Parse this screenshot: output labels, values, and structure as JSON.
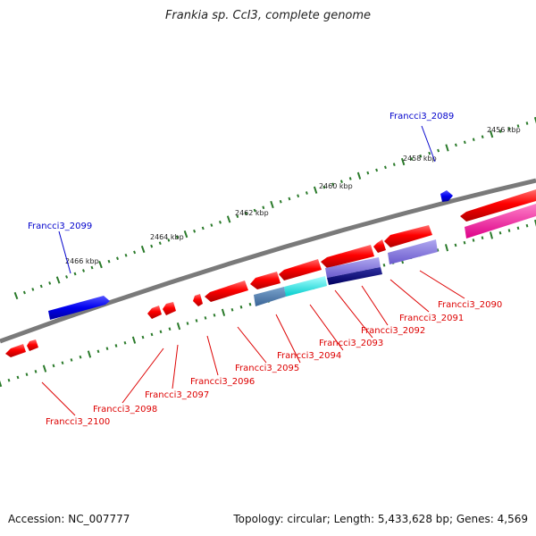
{
  "title": "Frankia sp. CcI3, complete genome",
  "footer": {
    "accession": "Accession: NC_007777",
    "summary": "Topology: circular; Length: 5,433,628 bp; Genes: 4,569"
  },
  "colors": {
    "plus_label": "#0000cc",
    "minus_label": "#dd0000",
    "backbone": "#7a7a7a",
    "tick": "#2a7a2a"
  },
  "ticks": [
    {
      "label": "2456 kbp"
    },
    {
      "label": "2458 kbp"
    },
    {
      "label": "2460 kbp"
    },
    {
      "label": "2462 kbp"
    },
    {
      "label": "2464 kbp"
    },
    {
      "label": "2466 kbp"
    }
  ],
  "gene_labels": [
    {
      "text": "Francci3_2089",
      "strand": "plus"
    },
    {
      "text": "Francci3_2099",
      "strand": "plus"
    },
    {
      "text": "Francci3_2090",
      "strand": "minus"
    },
    {
      "text": "Francci3_2091",
      "strand": "minus"
    },
    {
      "text": "Francci3_2092",
      "strand": "minus"
    },
    {
      "text": "Francci3_2093",
      "strand": "minus"
    },
    {
      "text": "Francci3_2094",
      "strand": "minus"
    },
    {
      "text": "Francci3_2095",
      "strand": "minus"
    },
    {
      "text": "Francci3_2096",
      "strand": "minus"
    },
    {
      "text": "Francci3_2097",
      "strand": "minus"
    },
    {
      "text": "Francci3_2098",
      "strand": "minus"
    },
    {
      "text": "Francci3_2100",
      "strand": "minus"
    }
  ]
}
